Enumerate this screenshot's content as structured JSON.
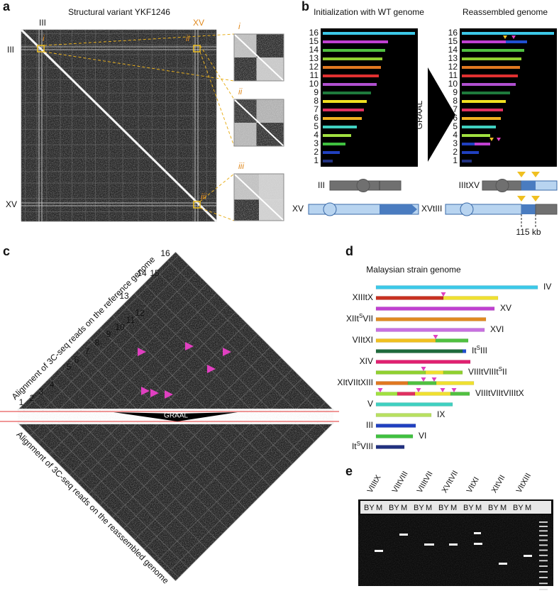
{
  "panel_a": {
    "letter": "a",
    "title": "Structural variant YKF1246",
    "top_labels": [
      "III",
      "XV"
    ],
    "side_labels": [
      "III",
      "XV"
    ],
    "box_labels": [
      "i",
      "ii",
      "iii"
    ],
    "inset_labels": [
      "i",
      "ii",
      "iii"
    ]
  },
  "panel_b": {
    "letter": "b",
    "left_title": "Initialization with WT genome",
    "right_title": "Reassembled genome",
    "left_rows": [
      16,
      15,
      14,
      13,
      12,
      11,
      10,
      9,
      8,
      7,
      6,
      5,
      4,
      3,
      2,
      1
    ],
    "right_rows": [
      16,
      15,
      14,
      13,
      12,
      11,
      10,
      9,
      8,
      7,
      6,
      5,
      4,
      3,
      2,
      1
    ],
    "arrow": "GRAAL",
    "wt_top": "III",
    "wt_bottom": "XV",
    "right_bottom": "XVtIII",
    "right_top": "IIItXV",
    "scale": "115 kb"
  },
  "panel_c": {
    "letter": "c",
    "top_axis": "Alignment of 3C-seq reads on the reference genome",
    "bottom_axis": "Alignment of 3C-seq reads on the reassembled genome",
    "ticks": [
      1,
      2,
      3,
      4,
      5,
      6,
      7,
      8,
      9,
      10,
      11,
      12,
      13,
      14,
      15,
      16
    ],
    "arrow": "GRAAL"
  },
  "panel_d": {
    "letter": "d",
    "title": "Malaysian strain genome",
    "chromosomes": [
      "IV",
      "XIIItX",
      "XV",
      {
        "pre": "XIIt",
        "sup": "S",
        "post": "VII"
      },
      "XVI",
      "VIItXI",
      {
        "pre": "It",
        "sup": "S",
        "post": "III"
      },
      "XIV",
      {
        "pre": "VIIItVIIIt",
        "sup": "S",
        "post": "II"
      },
      "XItVIItXIII",
      "VIIItVIItVIIItX",
      "V",
      "IX",
      "III",
      "VI",
      {
        "pre": "It",
        "sup": "S",
        "post": "VIII"
      }
    ]
  },
  "panel_e": {
    "letter": "e",
    "lanes": [
      {
        "name": "VIIItX",
        "wells": [
          "BY",
          "M"
        ]
      },
      {
        "name": "VIItVIII",
        "wells": [
          "BY",
          "M"
        ]
      },
      {
        "name": "VIIItVII",
        "wells": [
          "BY",
          "M"
        ]
      },
      {
        "name": "XVItVII",
        "wells": [
          "BY",
          "M"
        ]
      },
      {
        "name": "VItXI",
        "wells": [
          "BY",
          "M"
        ]
      },
      {
        "name": "XItVII",
        "wells": [
          "BY",
          "M"
        ]
      },
      {
        "name": "VItXIII",
        "wells": [
          "BY",
          "M"
        ]
      }
    ]
  }
}
